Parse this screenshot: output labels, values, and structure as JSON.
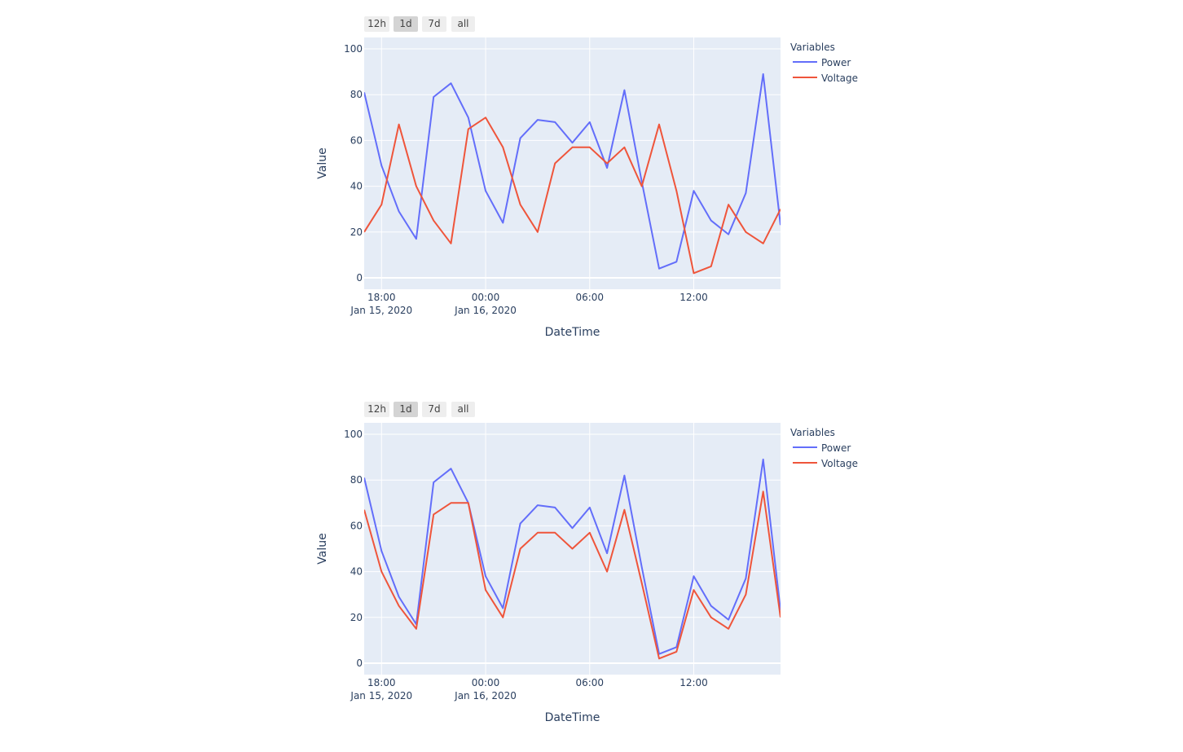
{
  "range_buttons": [
    "12h",
    "1d",
    "7d",
    "all"
  ],
  "active_range": "1d",
  "colors": {
    "power": "#636efa",
    "voltage": "#ef553b",
    "plot_bg": "#e5ecf6",
    "grid": "#ffffff"
  },
  "chart_data": [
    {
      "type": "line",
      "xlabel": "DateTime",
      "ylabel": "Value",
      "xlim": [
        "2020-01-15 17:00",
        "2020-01-16 17:00"
      ],
      "ylim": [
        -5,
        105
      ],
      "x_ticks": [
        {
          "t": "2020-01-15 18:00",
          "line1": "18:00",
          "line2": "Jan 15, 2020"
        },
        {
          "t": "2020-01-16 00:00",
          "line1": "00:00",
          "line2": "Jan 16, 2020"
        },
        {
          "t": "2020-01-16 06:00",
          "line1": "06:00",
          "line2": ""
        },
        {
          "t": "2020-01-16 12:00",
          "line1": "12:00",
          "line2": ""
        }
      ],
      "y_ticks": [
        0,
        20,
        40,
        60,
        80,
        100
      ],
      "legend_title": "Variables",
      "legend_position": "right",
      "x": [
        "2020-01-15 17:00",
        "2020-01-15 18:00",
        "2020-01-15 19:00",
        "2020-01-15 20:00",
        "2020-01-15 21:00",
        "2020-01-15 22:00",
        "2020-01-15 23:00",
        "2020-01-16 00:00",
        "2020-01-16 01:00",
        "2020-01-16 02:00",
        "2020-01-16 03:00",
        "2020-01-16 04:00",
        "2020-01-16 05:00",
        "2020-01-16 06:00",
        "2020-01-16 07:00",
        "2020-01-16 08:00",
        "2020-01-16 09:00",
        "2020-01-16 10:00",
        "2020-01-16 11:00",
        "2020-01-16 12:00",
        "2020-01-16 13:00",
        "2020-01-16 14:00",
        "2020-01-16 15:00",
        "2020-01-16 16:00",
        "2020-01-16 17:00"
      ],
      "series": [
        {
          "name": "Power",
          "color": "#636efa",
          "values": [
            81,
            49,
            29,
            17,
            79,
            85,
            70,
            38,
            24,
            61,
            69,
            68,
            59,
            68,
            48,
            82,
            42,
            4,
            7,
            38,
            25,
            19,
            37,
            89,
            23
          ]
        },
        {
          "name": "Voltage",
          "color": "#ef553b",
          "values": [
            20,
            32,
            67,
            40,
            25,
            15,
            65,
            70,
            57,
            32,
            20,
            50,
            57,
            57,
            50,
            57,
            40,
            67,
            38,
            2,
            5,
            32,
            20,
            15,
            30
          ]
        }
      ]
    },
    {
      "type": "line",
      "xlabel": "DateTime",
      "ylabel": "Value",
      "xlim": [
        "2020-01-15 17:00",
        "2020-01-16 17:00"
      ],
      "ylim": [
        -5,
        105
      ],
      "x_ticks": [
        {
          "t": "2020-01-15 18:00",
          "line1": "18:00",
          "line2": "Jan 15, 2020"
        },
        {
          "t": "2020-01-16 00:00",
          "line1": "00:00",
          "line2": "Jan 16, 2020"
        },
        {
          "t": "2020-01-16 06:00",
          "line1": "06:00",
          "line2": ""
        },
        {
          "t": "2020-01-16 12:00",
          "line1": "12:00",
          "line2": ""
        }
      ],
      "y_ticks": [
        0,
        20,
        40,
        60,
        80,
        100
      ],
      "legend_title": "Variables",
      "legend_position": "right",
      "x": [
        "2020-01-15 17:00",
        "2020-01-15 18:00",
        "2020-01-15 19:00",
        "2020-01-15 20:00",
        "2020-01-15 21:00",
        "2020-01-15 22:00",
        "2020-01-15 23:00",
        "2020-01-16 00:00",
        "2020-01-16 01:00",
        "2020-01-16 02:00",
        "2020-01-16 03:00",
        "2020-01-16 04:00",
        "2020-01-16 05:00",
        "2020-01-16 06:00",
        "2020-01-16 07:00",
        "2020-01-16 08:00",
        "2020-01-16 09:00",
        "2020-01-16 10:00",
        "2020-01-16 11:00",
        "2020-01-16 12:00",
        "2020-01-16 13:00",
        "2020-01-16 14:00",
        "2020-01-16 15:00",
        "2020-01-16 16:00",
        "2020-01-16 17:00"
      ],
      "series": [
        {
          "name": "Power",
          "color": "#636efa",
          "values": [
            81,
            49,
            29,
            17,
            79,
            85,
            70,
            38,
            24,
            61,
            69,
            68,
            59,
            68,
            48,
            82,
            42,
            4,
            7,
            38,
            25,
            19,
            37,
            89,
            23
          ]
        },
        {
          "name": "Voltage",
          "color": "#ef553b",
          "values": [
            67,
            40,
            25,
            15,
            65,
            70,
            70,
            32,
            20,
            50,
            57,
            57,
            50,
            57,
            40,
            67,
            35,
            2,
            5,
            32,
            20,
            15,
            30,
            75,
            20
          ]
        }
      ]
    }
  ]
}
